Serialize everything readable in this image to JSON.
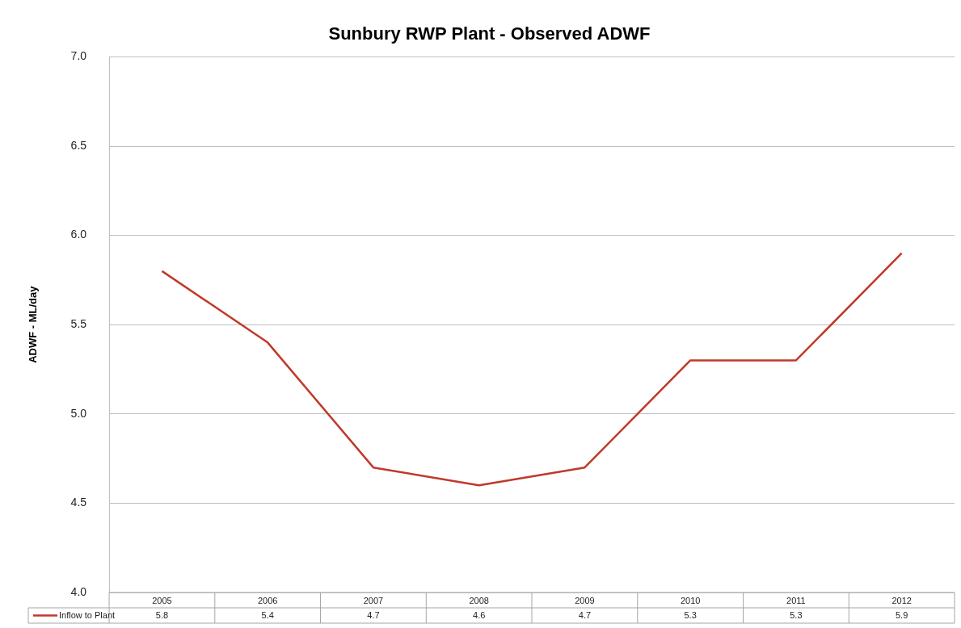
{
  "chart_data": {
    "type": "line",
    "title": "Sunbury RWP Plant - Observed ADWF",
    "ylabel": "ADWF - ML/day",
    "categories": [
      "2005",
      "2006",
      "2007",
      "2008",
      "2009",
      "2010",
      "2011",
      "2012"
    ],
    "series": [
      {
        "name": "Inflow to Plant",
        "color": "#c0392b",
        "values": [
          5.8,
          5.4,
          4.7,
          4.6,
          4.7,
          5.3,
          5.3,
          5.9
        ]
      }
    ],
    "ylim": [
      4,
      7
    ],
    "yticks": [
      {
        "value": 4,
        "label": "4.0"
      },
      {
        "value": 4.5,
        "label": "4.5"
      },
      {
        "value": 5,
        "label": "5.0"
      },
      {
        "value": 5.5,
        "label": "5.5"
      },
      {
        "value": 6,
        "label": "6.0"
      },
      {
        "value": 6.5,
        "label": "6.5"
      },
      {
        "value": 7,
        "label": "7.0"
      }
    ],
    "grid": "y",
    "legend": "bottom",
    "marker": "none",
    "line_style": "solid",
    "data_labels": true
  }
}
